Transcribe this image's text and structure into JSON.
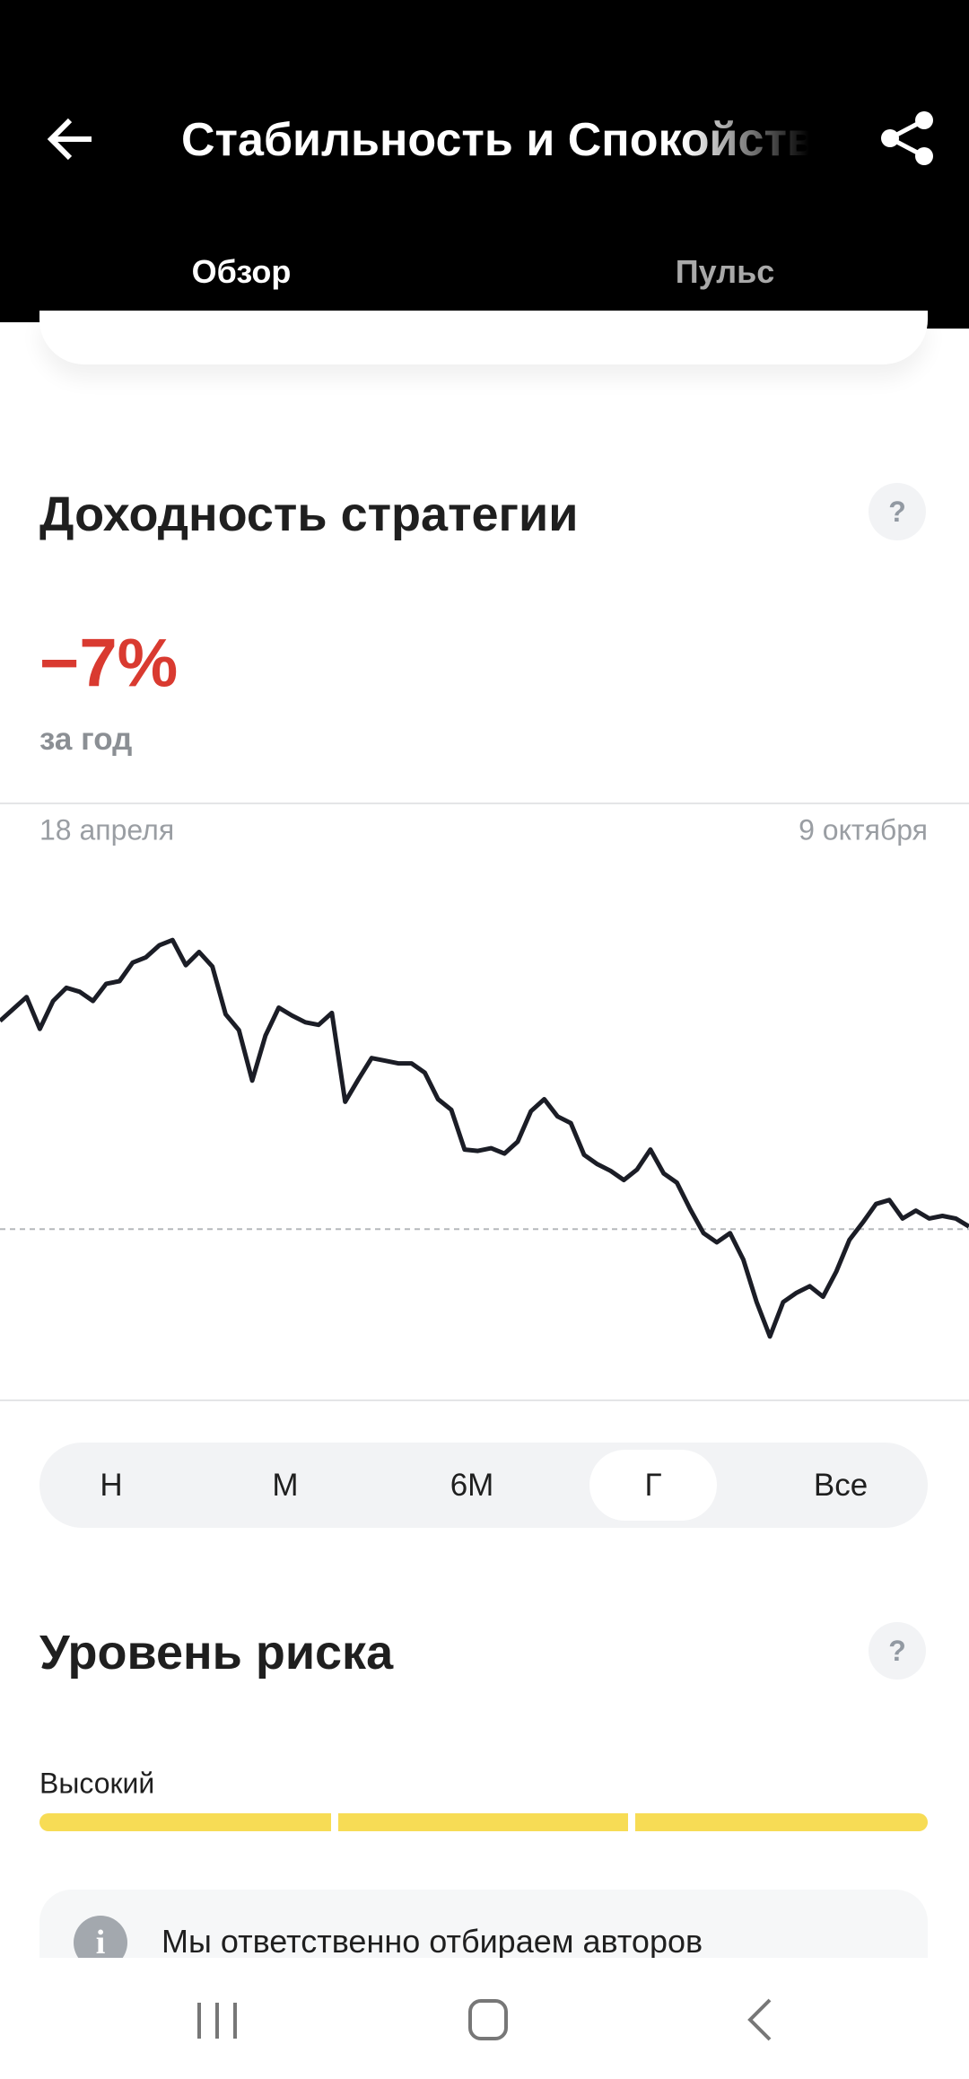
{
  "header": {
    "title": "Стабильность и Спокойствие",
    "tabs": [
      "Обзор",
      "Пульс"
    ]
  },
  "returns": {
    "title": "Доходность стратегии",
    "help": "?",
    "value_label": "−7%",
    "period": "за год"
  },
  "chart_data": {
    "type": "line",
    "date_start": "18 апреля",
    "date_end": "9 октября",
    "color": "#1b1d26",
    "values": [
      280,
      289,
      298,
      274,
      295,
      305,
      302,
      295,
      308,
      310,
      324,
      328,
      337,
      341,
      322,
      332,
      321,
      285,
      273,
      235,
      269,
      290,
      284,
      279,
      277,
      286,
      219,
      236,
      252,
      250,
      248,
      248,
      241,
      221,
      213,
      183,
      182,
      184,
      180,
      189,
      212,
      221,
      208,
      203,
      179,
      172,
      167,
      160,
      168,
      183,
      165,
      158,
      138,
      120,
      113,
      120,
      100,
      68,
      42,
      68,
      75,
      80,
      72,
      91,
      115,
      128,
      142,
      145,
      131,
      137,
      131,
      133,
      131,
      125
    ],
    "ylim": [
      0,
      400
    ],
    "baseline": 123
  },
  "periods": [
    "Н",
    "М",
    "6М",
    "Г",
    "Все"
  ],
  "risk": {
    "title": "Уровень риска",
    "help": "?",
    "level": "Высокий"
  },
  "info": {
    "text": "Мы ответственно отбираем авторов",
    "icon": "i"
  }
}
